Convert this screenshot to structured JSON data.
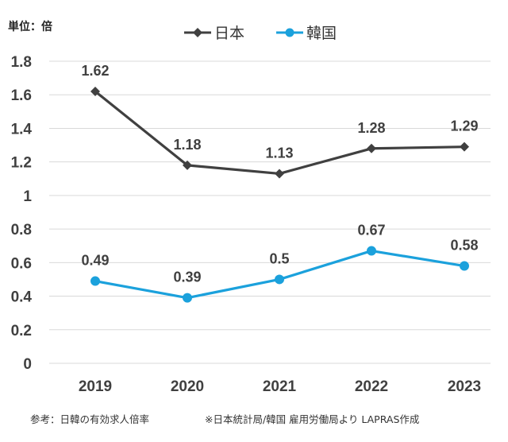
{
  "unit_label": "単位：倍",
  "footer": {
    "left": "参考：日韓の有効求人倍率",
    "right": "※日本統計局/韓国 雇用労働局より LAPRAS作成"
  },
  "colors": {
    "japan": "#404040",
    "korea": "#1BA1DC",
    "grid": "#d9d9d9"
  },
  "chart_data": {
    "type": "line",
    "title": "",
    "xlabel": "",
    "ylabel": "単位：倍",
    "x": [
      "2019",
      "2020",
      "2021",
      "2022",
      "2023"
    ],
    "ylim": [
      0,
      1.8
    ],
    "yticks": [
      "0",
      "0.2",
      "0.4",
      "0.6",
      "0.8",
      "1",
      "1.2",
      "1.4",
      "1.6",
      "1.8"
    ],
    "grid": true,
    "legend_position": "top-center",
    "series": [
      {
        "name": "日本",
        "marker": "diamond",
        "color": "#404040",
        "values": [
          1.62,
          1.18,
          1.13,
          1.28,
          1.29
        ],
        "labels": [
          "1.62",
          "1.18",
          "1.13",
          "1.28",
          "1.29"
        ]
      },
      {
        "name": "韓国",
        "marker": "circle",
        "color": "#1BA1DC",
        "values": [
          0.49,
          0.39,
          0.5,
          0.67,
          0.58
        ],
        "labels": [
          "0.49",
          "0.39",
          "0.5",
          "0.67",
          "0.58"
        ]
      }
    ]
  }
}
